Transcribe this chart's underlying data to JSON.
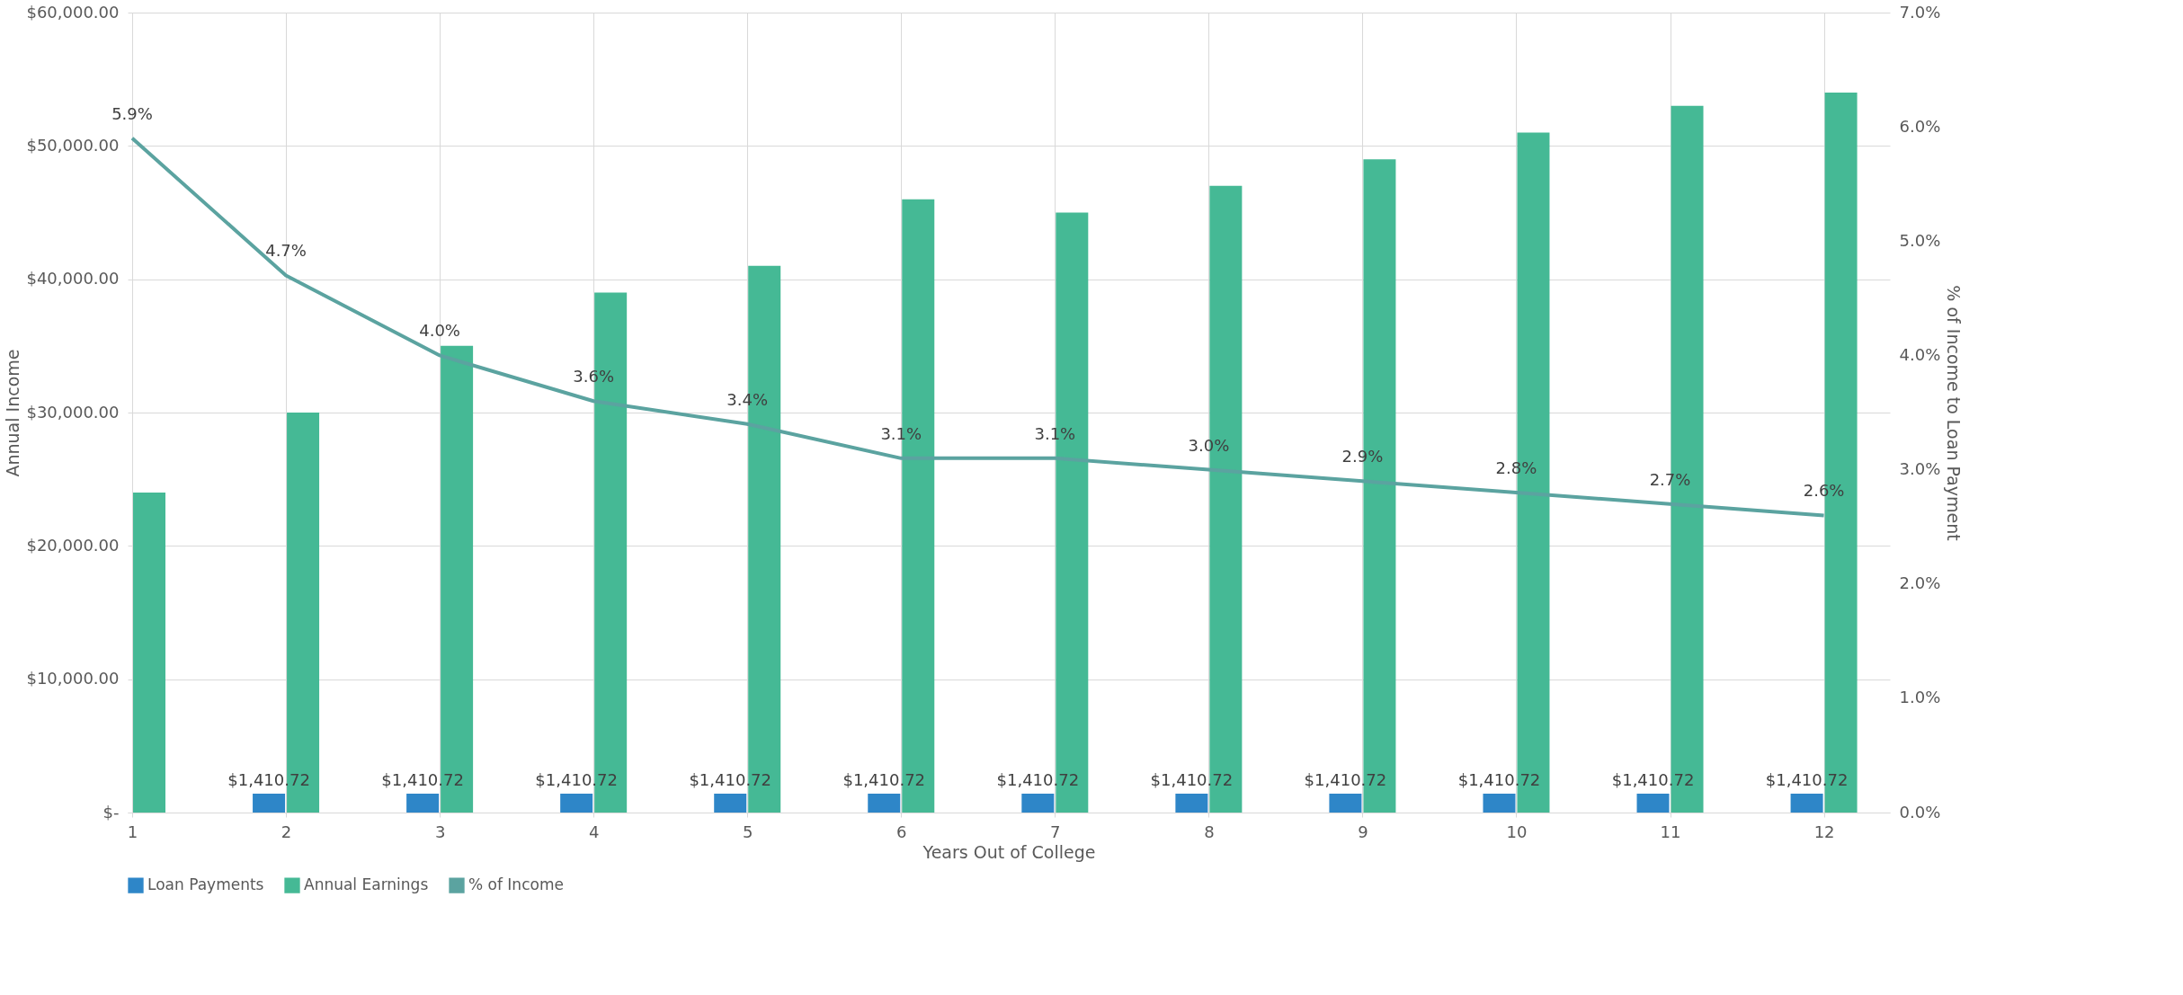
{
  "chart_data": {
    "type": "bar",
    "xlabel": "Years Out of College",
    "ylabel": "Annual Income",
    "y2label": "% of Income to Loan Payment",
    "categories": [
      "1",
      "2",
      "3",
      "4",
      "5",
      "6",
      "7",
      "8",
      "9",
      "10",
      "11",
      "12"
    ],
    "series": [
      {
        "name": "Loan Payments",
        "type": "bar",
        "color": "#2e86c8",
        "values": [
          null,
          1410.72,
          1410.72,
          1410.72,
          1410.72,
          1410.72,
          1410.72,
          1410.72,
          1410.72,
          1410.72,
          1410.72,
          1410.72
        ],
        "value_labels": [
          null,
          "$1,410.72",
          "$1,410.72",
          "$1,410.72",
          "$1,410.72",
          "$1,410.72",
          "$1,410.72",
          "$1,410.72",
          "$1,410.72",
          "$1,410.72",
          "$1,410.72",
          "$1,410.72"
        ]
      },
      {
        "name": "Annual Earnings",
        "type": "bar",
        "color": "#45b995",
        "values": [
          24000,
          30000,
          35000,
          39000,
          41000,
          46000,
          45000,
          47000,
          49000,
          51000,
          53000,
          54000
        ]
      },
      {
        "name": "% of Income",
        "type": "line",
        "axis": "y2",
        "color": "#5ba3a0",
        "values": [
          5.9,
          4.7,
          4.0,
          3.6,
          3.4,
          3.1,
          3.1,
          3.0,
          2.9,
          2.8,
          2.7,
          2.6
        ],
        "value_labels": [
          "5.9%",
          "4.7%",
          "4.0%",
          "3.6%",
          "3.4%",
          "3.1%",
          "3.1%",
          "3.0%",
          "2.9%",
          "2.8%",
          "2.7%",
          "2.6%"
        ]
      }
    ],
    "ylim": [
      0,
      60000
    ],
    "yticks": [
      {
        "value": 0,
        "label": "$-"
      },
      {
        "value": 10000,
        "label": "$10,000.00"
      },
      {
        "value": 20000,
        "label": "$20,000.00"
      },
      {
        "value": 30000,
        "label": "$30,000.00"
      },
      {
        "value": 40000,
        "label": "$40,000.00"
      },
      {
        "value": 50000,
        "label": "$50,000.00"
      },
      {
        "value": 60000,
        "label": "$60,000.00"
      }
    ],
    "y2lim": [
      0,
      7
    ],
    "y2ticks": [
      {
        "value": 0,
        "label": "0.0%"
      },
      {
        "value": 1,
        "label": "1.0%"
      },
      {
        "value": 2,
        "label": "2.0%"
      },
      {
        "value": 3,
        "label": "3.0%"
      },
      {
        "value": 4,
        "label": "4.0%"
      },
      {
        "value": 5,
        "label": "5.0%"
      },
      {
        "value": 6,
        "label": "6.0%"
      },
      {
        "value": 7,
        "label": "7.0%"
      }
    ],
    "grid": true,
    "legend": "bottom",
    "marker": "none",
    "line_style": "solid"
  }
}
